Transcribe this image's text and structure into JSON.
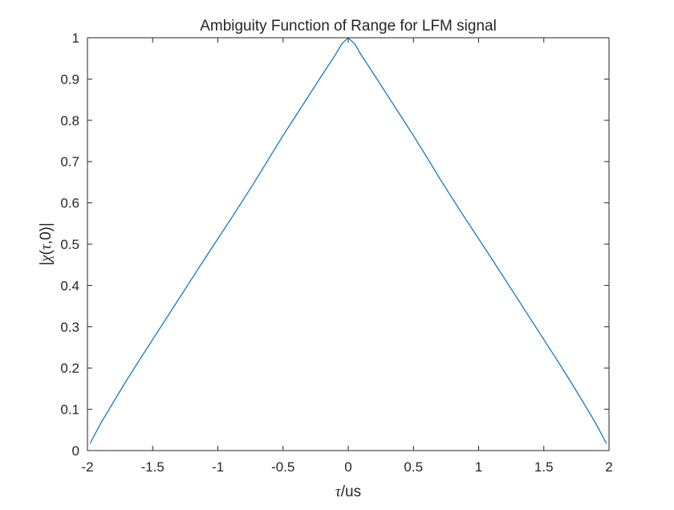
{
  "chart_data": {
    "type": "line",
    "title": "Ambiguity Function of Range for LFM signal",
    "xlabel": {
      "symbol": "τ",
      "unit": "/us"
    },
    "ylabel": {
      "open": "|",
      "symbol": "χ",
      "paren_open": "(",
      "arg": "τ",
      "rest": ",0)|"
    },
    "xlim": [
      -2,
      2
    ],
    "ylim": [
      0,
      1
    ],
    "xticks": [
      -2,
      -1.5,
      -1,
      -0.5,
      0,
      0.5,
      1,
      1.5,
      2
    ],
    "xtick_labels": [
      "-2",
      "-1.5",
      "-1",
      "-0.5",
      "0",
      "0.5",
      "1",
      "1.5",
      "2"
    ],
    "yticks": [
      0,
      0.1,
      0.2,
      0.3,
      0.4,
      0.5,
      0.6,
      0.7,
      0.8,
      0.9,
      1
    ],
    "ytick_labels": [
      "0",
      "0.1",
      "0.2",
      "0.3",
      "0.4",
      "0.5",
      "0.6",
      "0.7",
      "0.8",
      "0.9",
      "1"
    ],
    "grid": false,
    "box": true,
    "series": [
      {
        "color": "#0072BD",
        "x": [
          -1.98,
          -1.9,
          -1.8,
          -1.7,
          -1.6,
          -1.5,
          -1.4,
          -1.3,
          -1.2,
          -1.1,
          -1.0,
          -0.9,
          -0.8,
          -0.7,
          -0.6,
          -0.5,
          -0.4,
          -0.3,
          -0.2,
          -0.1,
          -0.05,
          0,
          0.05,
          0.1,
          0.2,
          0.3,
          0.4,
          0.5,
          0.6,
          0.7,
          0.8,
          0.9,
          1.0,
          1.1,
          1.2,
          1.3,
          1.4,
          1.5,
          1.6,
          1.7,
          1.8,
          1.9,
          1.98
        ],
        "y": [
          0.017,
          0.065,
          0.118,
          0.17,
          0.22,
          0.269,
          0.318,
          0.367,
          0.416,
          0.465,
          0.513,
          0.561,
          0.61,
          0.66,
          0.712,
          0.763,
          0.812,
          0.861,
          0.91,
          0.958,
          0.985,
          1.0,
          0.985,
          0.958,
          0.91,
          0.861,
          0.812,
          0.763,
          0.712,
          0.66,
          0.61,
          0.561,
          0.513,
          0.465,
          0.416,
          0.367,
          0.318,
          0.269,
          0.22,
          0.17,
          0.118,
          0.065,
          0.017
        ]
      }
    ]
  }
}
